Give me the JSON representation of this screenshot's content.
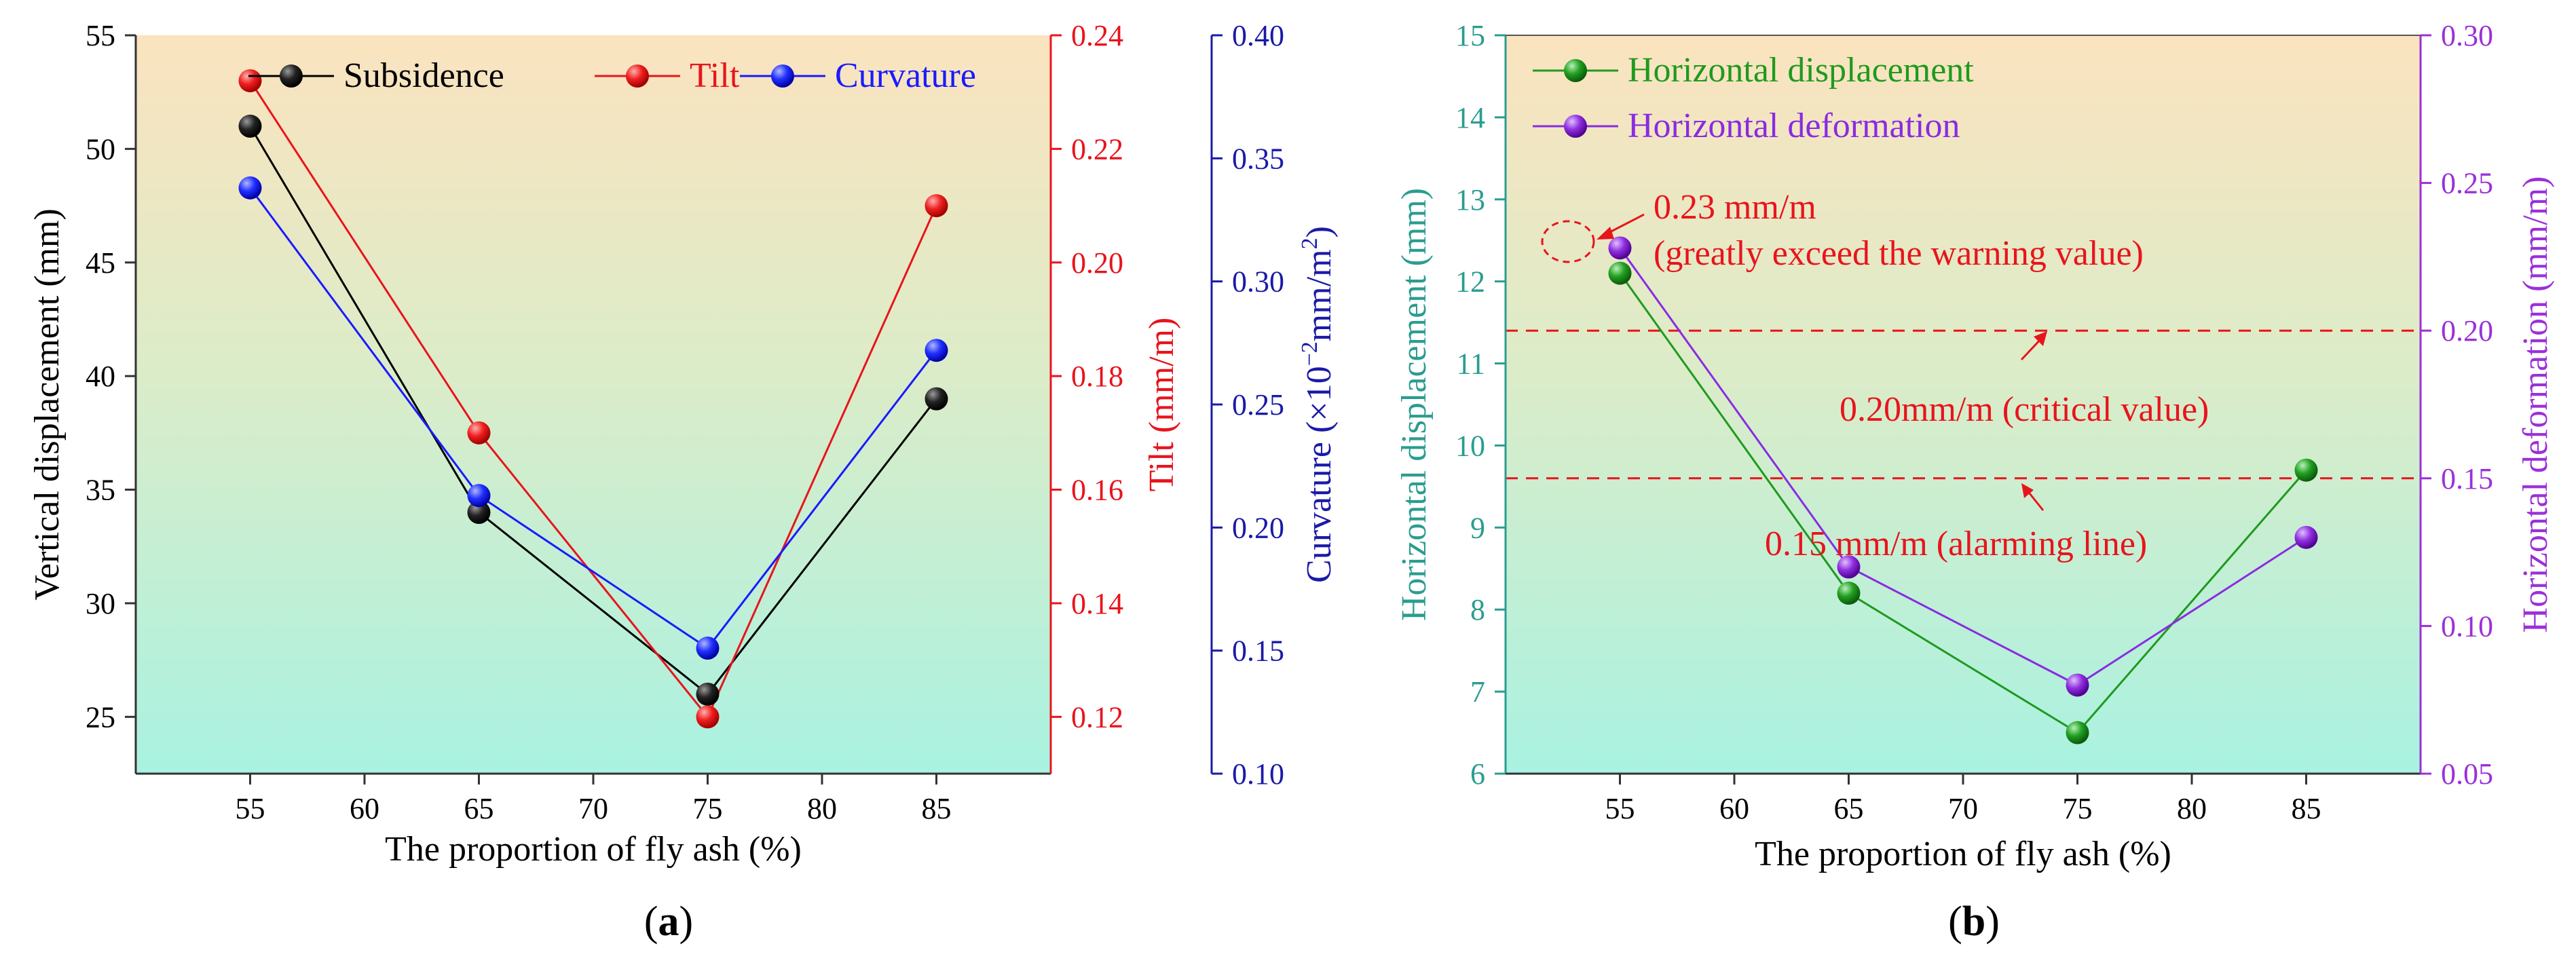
{
  "chart_data": [
    {
      "type": "line",
      "panel_label": "(a)",
      "panel_label_letter": "a",
      "xlabel": "The proportion of fly ash (%)",
      "xlim": [
        50,
        90
      ],
      "x_ticks": [
        55,
        60,
        65,
        70,
        75,
        80,
        85
      ],
      "x": [
        55,
        65,
        75,
        85
      ],
      "axes": {
        "left": {
          "label": "Vertical displacement (mm)",
          "range": [
            22.5,
            55
          ],
          "ticks": [
            25,
            30,
            35,
            40,
            45,
            50,
            55
          ],
          "color": "#000000"
        },
        "right1": {
          "label": "Tilt (mm/m)",
          "range": [
            0.11,
            0.24
          ],
          "ticks": [
            "0.12",
            "0.14",
            "0.16",
            "0.18",
            "0.20",
            "0.22",
            "0.24"
          ],
          "color": "#e8141c"
        },
        "right2": {
          "label_prefix": "Curvature (×10",
          "label_exp1": "−2",
          "label_mid": "mm/m",
          "label_exp2": "2",
          "label_suffix": ")",
          "range": [
            0.1,
            0.4
          ],
          "ticks": [
            "0.10",
            "0.15",
            "0.20",
            "0.25",
            "0.30",
            "0.35",
            "0.40"
          ],
          "color": "#1a1aa8"
        }
      },
      "series": [
        {
          "name": "Subsidence",
          "axis": "left",
          "color": "#000000",
          "values": [
            51,
            34,
            26,
            39
          ]
        },
        {
          "name": "Tilt",
          "axis": "right1",
          "color": "#e8141c",
          "values": [
            0.232,
            0.17,
            0.12,
            0.21
          ]
        },
        {
          "name": "Curvature",
          "axis": "right2",
          "color": "#1a1aff",
          "values": [
            0.338,
            0.213,
            0.151,
            0.272
          ]
        }
      ],
      "legend": "top"
    },
    {
      "type": "line",
      "panel_label": "(b)",
      "panel_label_letter": "b",
      "xlabel": "The proportion of fly ash (%)",
      "xlim": [
        50,
        90
      ],
      "x_ticks": [
        55,
        60,
        65,
        70,
        75,
        80,
        85
      ],
      "x": [
        55,
        65,
        75,
        85
      ],
      "axes": {
        "left": {
          "label": "Horizontal displacement (mm)",
          "range": [
            6,
            15
          ],
          "ticks": [
            6,
            7,
            8,
            9,
            10,
            11,
            12,
            13,
            14,
            15
          ],
          "color": "#2a9d8f"
        },
        "right": {
          "label": "Horizontal deformation (mm/m)",
          "range": [
            0.05,
            0.3
          ],
          "ticks": [
            "0.05",
            "0.10",
            "0.15",
            "0.20",
            "0.25",
            "0.30"
          ],
          "color": "#9b30d9"
        }
      },
      "series": [
        {
          "name": "Horizontal displacement",
          "axis": "left",
          "color": "#1f9a1f",
          "values": [
            12.1,
            8.2,
            6.5,
            9.7
          ]
        },
        {
          "name": "Horizontal deformation",
          "axis": "right",
          "color": "#8a2be2",
          "values": [
            0.228,
            0.12,
            0.08,
            0.13
          ]
        }
      ],
      "reference_lines": [
        {
          "axis": "right",
          "value": 0.2,
          "label": "0.20mm/m (critical value)",
          "color": "#e8141c"
        },
        {
          "axis": "right",
          "value": 0.15,
          "label": "0.15 mm/m (alarming line)",
          "color": "#e8141c"
        }
      ],
      "annotation": {
        "line1": "0.23 mm/m",
        "line2": "(greatly exceed the warning value)",
        "color": "#e8141c"
      },
      "legend": "top-left"
    }
  ]
}
